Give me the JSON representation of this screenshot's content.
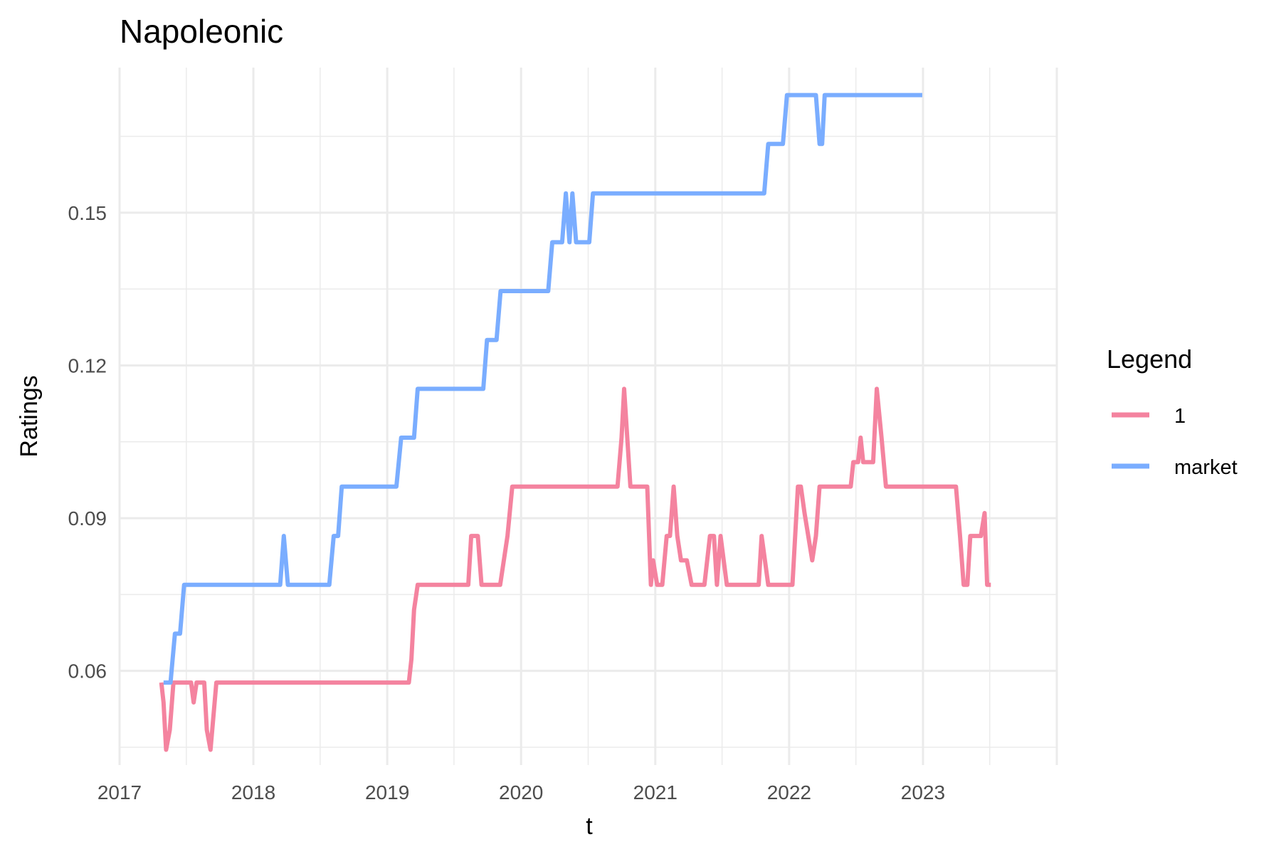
{
  "chart_data": {
    "type": "line",
    "title": "Napoleonic",
    "xlabel": "t",
    "ylabel": "Ratings",
    "x_ticks": [
      "2017",
      "2018",
      "2019",
      "2020",
      "2021",
      "2022",
      "2023"
    ],
    "y_ticks": [
      "0.06",
      "0.09",
      "0.12",
      "0.15"
    ],
    "xlim": [
      "2017-01-01",
      "2024-01-01"
    ],
    "ylim": [
      0.0415,
      0.1785
    ],
    "grid": true,
    "legend": {
      "title": "Legend",
      "placement": "right"
    },
    "series": [
      {
        "name": "1",
        "color": "#F4839F",
        "points": [
          [
            "2017-04-25",
            0.0577
          ],
          [
            "2017-05-01",
            0.0538
          ],
          [
            "2017-05-08",
            0.0445
          ],
          [
            "2017-05-18",
            0.0484
          ],
          [
            "2017-05-28",
            0.0577
          ],
          [
            "2017-07-15",
            0.0577
          ],
          [
            "2017-07-22",
            0.0538
          ],
          [
            "2017-07-30",
            0.0577
          ],
          [
            "2017-08-20",
            0.0577
          ],
          [
            "2017-08-27",
            0.0484
          ],
          [
            "2017-09-06",
            0.0445
          ],
          [
            "2017-09-22",
            0.0577
          ],
          [
            "2019-03-01",
            0.0577
          ],
          [
            "2019-03-08",
            0.0623
          ],
          [
            "2019-03-15",
            0.072
          ],
          [
            "2019-03-25",
            0.0769
          ],
          [
            "2019-08-10",
            0.0769
          ],
          [
            "2019-08-18",
            0.0865
          ],
          [
            "2019-09-05",
            0.0865
          ],
          [
            "2019-09-15",
            0.0769
          ],
          [
            "2019-11-05",
            0.0769
          ],
          [
            "2019-11-25",
            0.0865
          ],
          [
            "2019-12-08",
            0.0962
          ],
          [
            "2020-09-20",
            0.0962
          ],
          [
            "2020-10-01",
            0.1058
          ],
          [
            "2020-10-08",
            0.1154
          ],
          [
            "2020-10-25",
            0.0962
          ],
          [
            "2020-12-10",
            0.0962
          ],
          [
            "2020-12-20",
            0.0769
          ],
          [
            "2020-12-26",
            0.0817
          ],
          [
            "2021-01-06",
            0.0769
          ],
          [
            "2021-01-20",
            0.0769
          ],
          [
            "2021-02-01",
            0.0865
          ],
          [
            "2021-02-10",
            0.0865
          ],
          [
            "2021-02-20",
            0.0962
          ],
          [
            "2021-03-02",
            0.0865
          ],
          [
            "2021-03-12",
            0.0817
          ],
          [
            "2021-03-28",
            0.0817
          ],
          [
            "2021-04-10",
            0.0769
          ],
          [
            "2021-05-15",
            0.0769
          ],
          [
            "2021-05-30",
            0.0865
          ],
          [
            "2021-06-10",
            0.0865
          ],
          [
            "2021-06-18",
            0.0769
          ],
          [
            "2021-06-28",
            0.0865
          ],
          [
            "2021-07-15",
            0.0769
          ],
          [
            "2021-10-10",
            0.0769
          ],
          [
            "2021-10-18",
            0.0865
          ],
          [
            "2021-11-05",
            0.0769
          ],
          [
            "2022-01-10",
            0.0769
          ],
          [
            "2022-01-25",
            0.0962
          ],
          [
            "2022-02-02",
            0.0962
          ],
          [
            "2022-02-12",
            0.091
          ],
          [
            "2022-03-05",
            0.0817
          ],
          [
            "2022-03-15",
            0.0865
          ],
          [
            "2022-03-25",
            0.0962
          ],
          [
            "2022-06-18",
            0.0962
          ],
          [
            "2022-06-25",
            0.101
          ],
          [
            "2022-07-08",
            0.101
          ],
          [
            "2022-07-15",
            0.1058
          ],
          [
            "2022-07-22",
            0.101
          ],
          [
            "2022-08-18",
            0.101
          ],
          [
            "2022-08-28",
            0.1154
          ],
          [
            "2022-09-10",
            0.1058
          ],
          [
            "2022-09-22",
            0.0962
          ],
          [
            "2023-04-01",
            0.0962
          ],
          [
            "2023-04-12",
            0.0865
          ],
          [
            "2023-04-22",
            0.0769
          ],
          [
            "2023-05-02",
            0.0769
          ],
          [
            "2023-05-10",
            0.0865
          ],
          [
            "2023-06-08",
            0.0865
          ],
          [
            "2023-06-18",
            0.091
          ],
          [
            "2023-06-25",
            0.0769
          ],
          [
            "2023-07-05",
            0.0769
          ]
        ]
      },
      {
        "name": "market",
        "color": "#7AADFF",
        "points": [
          [
            "2017-05-01",
            0.0577
          ],
          [
            "2017-05-20",
            0.0577
          ],
          [
            "2017-06-01",
            0.0673
          ],
          [
            "2017-06-15",
            0.0673
          ],
          [
            "2017-06-26",
            0.0769
          ],
          [
            "2018-03-15",
            0.0769
          ],
          [
            "2018-03-25",
            0.0865
          ],
          [
            "2018-04-05",
            0.0769
          ],
          [
            "2018-07-27",
            0.0769
          ],
          [
            "2018-08-08",
            0.0865
          ],
          [
            "2018-08-20",
            0.0865
          ],
          [
            "2018-08-30",
            0.0962
          ],
          [
            "2019-01-26",
            0.0962
          ],
          [
            "2019-02-08",
            0.1058
          ],
          [
            "2019-03-15",
            0.1058
          ],
          [
            "2019-03-25",
            0.1154
          ],
          [
            "2019-09-20",
            0.1154
          ],
          [
            "2019-09-30",
            0.125
          ],
          [
            "2019-10-26",
            0.125
          ],
          [
            "2019-11-06",
            0.1346
          ],
          [
            "2020-03-15",
            0.1346
          ],
          [
            "2020-03-26",
            0.1442
          ],
          [
            "2020-04-22",
            0.1442
          ],
          [
            "2020-05-02",
            0.1538
          ],
          [
            "2020-05-12",
            0.1442
          ],
          [
            "2020-05-20",
            0.1538
          ],
          [
            "2020-05-30",
            0.1442
          ],
          [
            "2020-07-05",
            0.1442
          ],
          [
            "2020-07-15",
            0.1538
          ],
          [
            "2021-10-25",
            0.1538
          ],
          [
            "2021-11-05",
            0.1635
          ],
          [
            "2021-12-15",
            0.1635
          ],
          [
            "2021-12-26",
            0.1731
          ],
          [
            "2022-03-15",
            0.1731
          ],
          [
            "2022-03-25",
            0.1635
          ],
          [
            "2022-04-01",
            0.1635
          ],
          [
            "2022-04-08",
            0.1731
          ],
          [
            "2022-12-30",
            0.1731
          ]
        ]
      }
    ]
  }
}
